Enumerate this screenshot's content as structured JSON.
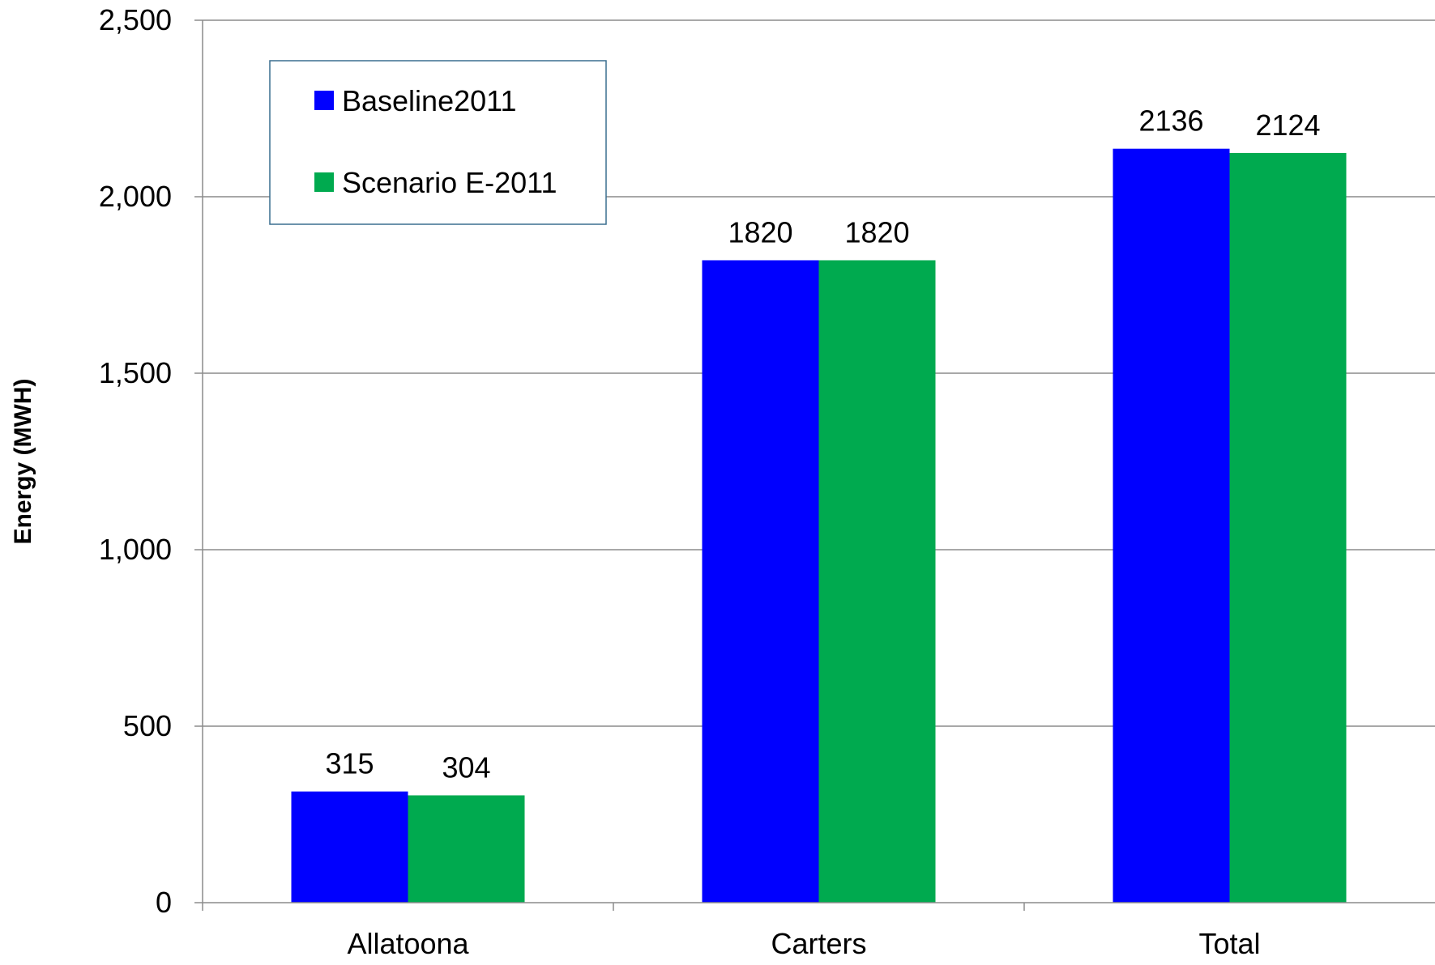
{
  "chart_data": {
    "type": "bar",
    "title": "",
    "xlabel": "",
    "ylabel": "Energy (MWH)",
    "categories": [
      "Allatoona",
      "Carters",
      "Total"
    ],
    "series": [
      {
        "name": "Baseline2011",
        "color": "#0000ff",
        "values": [
          315,
          1820,
          2136
        ],
        "value_labels": [
          "315",
          "1820",
          "2136"
        ]
      },
      {
        "name": "Scenario E-2011",
        "color": "#00aa4f",
        "values": [
          304,
          1820,
          2124
        ],
        "value_labels": [
          "304",
          "1820",
          "2124"
        ]
      }
    ],
    "ylim": [
      0,
      2500
    ],
    "yticks": [
      0,
      500,
      1000,
      1500,
      2000,
      2500
    ],
    "ytick_labels": [
      "0",
      "500",
      "1,000",
      "1,500",
      "2,000",
      "2,500"
    ],
    "grid": true,
    "legend_position": "top-left"
  }
}
